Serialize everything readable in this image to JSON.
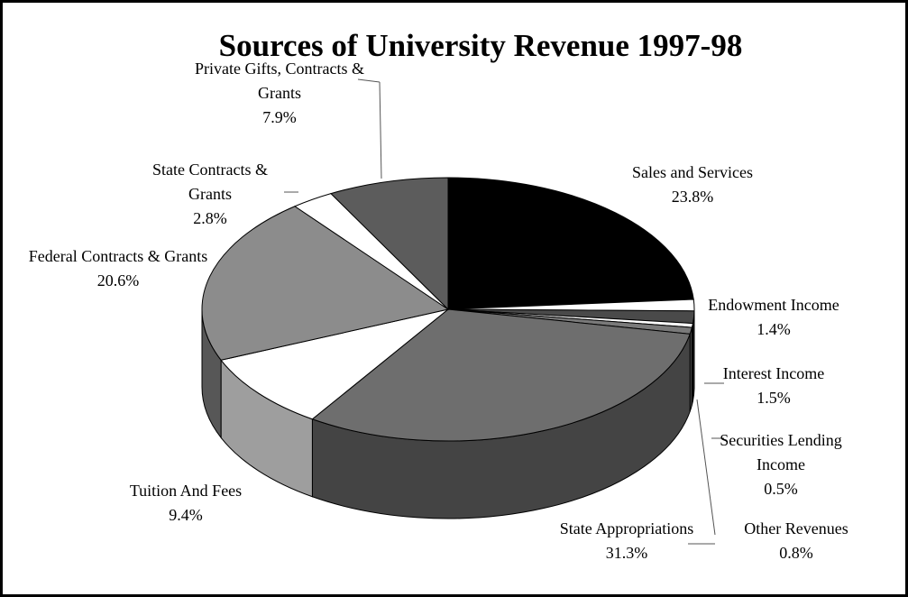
{
  "chart_data": {
    "type": "pie",
    "title": "Sources of University Revenue  1997-98",
    "categories": [
      "Sales and Services",
      "Endowment Income",
      "Interest Income",
      "Securities Lending Income",
      "Other Revenues",
      "State Appropriations",
      "Tuition And Fees",
      "Federal Contracts & Grants",
      "State Contracts & Grants",
      "Private Gifts, Contracts & Grants"
    ],
    "values": [
      23.8,
      1.4,
      1.5,
      0.5,
      0.8,
      31.3,
      9.4,
      20.6,
      2.8,
      7.9
    ],
    "value_labels": [
      "23.8%",
      "1.4%",
      "1.5%",
      "0.5%",
      "0.8%",
      "31.3%",
      "9.4%",
      "20.6%",
      "2.8%",
      "7.9%"
    ],
    "colors": [
      "#000000",
      "#ffffff",
      "#4a4a4a",
      "#ffffff",
      "#7a7a7a",
      "#6e6e6e",
      "#ffffff",
      "#8c8c8c",
      "#ffffff",
      "#5c5c5c"
    ]
  }
}
